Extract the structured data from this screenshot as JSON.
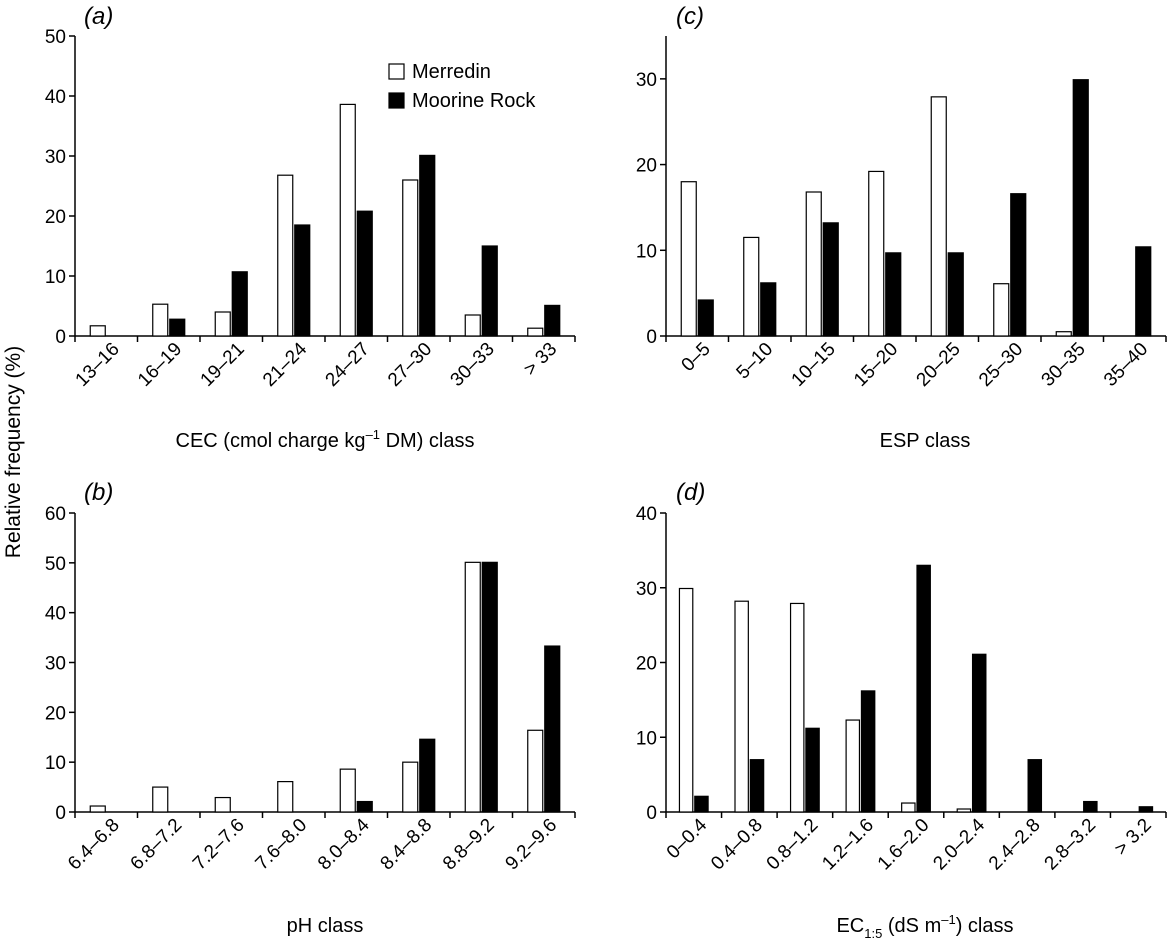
{
  "figure": {
    "ylabel": "Relative frequency (%)",
    "series_names": [
      "Merredin",
      "Moorine Rock"
    ],
    "colors": {
      "merredin": "#ffffff",
      "moorine": "#000000",
      "stroke": "#000000"
    }
  },
  "chart_data": [
    {
      "id": "a",
      "type": "bar",
      "panel_label_open": "(",
      "panel_label_letter": "a",
      "panel_label_close": ")",
      "xlabel_pre": "CEC (cmol charge kg",
      "xlabel_sup": "–1",
      "xlabel_post": " DM) class",
      "ylim": [
        0,
        50
      ],
      "yticks": [
        0,
        10,
        20,
        30,
        40,
        50
      ],
      "categories": [
        "13–16",
        "16–19",
        "19–21",
        "21–24",
        "24–27",
        "27–30",
        "30–33",
        "> 33"
      ],
      "series": [
        {
          "name": "Merredin",
          "values": [
            1.7,
            5.3,
            4.0,
            26.8,
            38.6,
            26.0,
            3.5,
            1.3
          ]
        },
        {
          "name": "Moorine Rock",
          "values": [
            0,
            2.8,
            10.7,
            18.5,
            20.8,
            30.1,
            15.0,
            5.1
          ]
        }
      ],
      "legend": {
        "position": "top-right",
        "entries": [
          "Merredin",
          "Moorine Rock"
        ]
      }
    },
    {
      "id": "c",
      "type": "bar",
      "panel_label_open": "(",
      "panel_label_letter": "c",
      "panel_label_close": ")",
      "xlabel": "ESP class",
      "ylim": [
        0,
        35
      ],
      "yticks": [
        0,
        10,
        20,
        30
      ],
      "categories": [
        "0–5",
        "5–10",
        "10–15",
        "15–20",
        "20–25",
        "25–30",
        "30–35",
        "35–40"
      ],
      "series": [
        {
          "name": "Merredin",
          "values": [
            18.0,
            11.5,
            16.8,
            19.2,
            27.9,
            6.1,
            0.5,
            0
          ]
        },
        {
          "name": "Moorine Rock",
          "values": [
            4.2,
            6.2,
            13.2,
            9.7,
            9.7,
            16.6,
            29.9,
            10.4
          ]
        }
      ]
    },
    {
      "id": "b",
      "type": "bar",
      "panel_label_open": "(",
      "panel_label_letter": "b",
      "panel_label_close": ")",
      "xlabel": "pH class",
      "ylim": [
        0,
        60
      ],
      "yticks": [
        0,
        10,
        20,
        30,
        40,
        50,
        60
      ],
      "categories": [
        "6.4–6.8",
        "6.8–7.2",
        "7.2–7.6",
        "7.6–8.0",
        "8.0–8.4",
        "8.4–8.8",
        "8.8–9.2",
        "9.2–9.6"
      ],
      "series": [
        {
          "name": "Merredin",
          "values": [
            1.2,
            5.0,
            2.9,
            6.1,
            8.6,
            10.0,
            50.1,
            16.4
          ]
        },
        {
          "name": "Moorine Rock",
          "values": [
            0,
            0,
            0,
            0,
            2.1,
            14.6,
            50.1,
            33.3
          ]
        }
      ]
    },
    {
      "id": "d",
      "type": "bar",
      "panel_label_open": "(",
      "panel_label_letter": "d",
      "panel_label_close": ")",
      "xlabel_pre": "EC",
      "xlabel_sub": "1:5",
      "xlabel_mid": " (dS m",
      "xlabel_sup": "–1",
      "xlabel_post": ") class",
      "ylim": [
        0,
        40
      ],
      "yticks": [
        0,
        10,
        20,
        30,
        40
      ],
      "categories": [
        "0–0.4",
        "0.4–0.8",
        "0.8–1.2",
        "1.2–1.6",
        "1.6–2.0",
        "2.0–2.4",
        "2.4–2.8",
        "2.8–3.2",
        "> 3.2"
      ],
      "series": [
        {
          "name": "Merredin",
          "values": [
            29.9,
            28.2,
            27.9,
            12.3,
            1.2,
            0.4,
            0,
            0,
            0
          ]
        },
        {
          "name": "Moorine Rock",
          "values": [
            2.1,
            7.0,
            11.2,
            16.2,
            33.0,
            21.1,
            7.0,
            1.4,
            0.7
          ]
        }
      ]
    }
  ]
}
